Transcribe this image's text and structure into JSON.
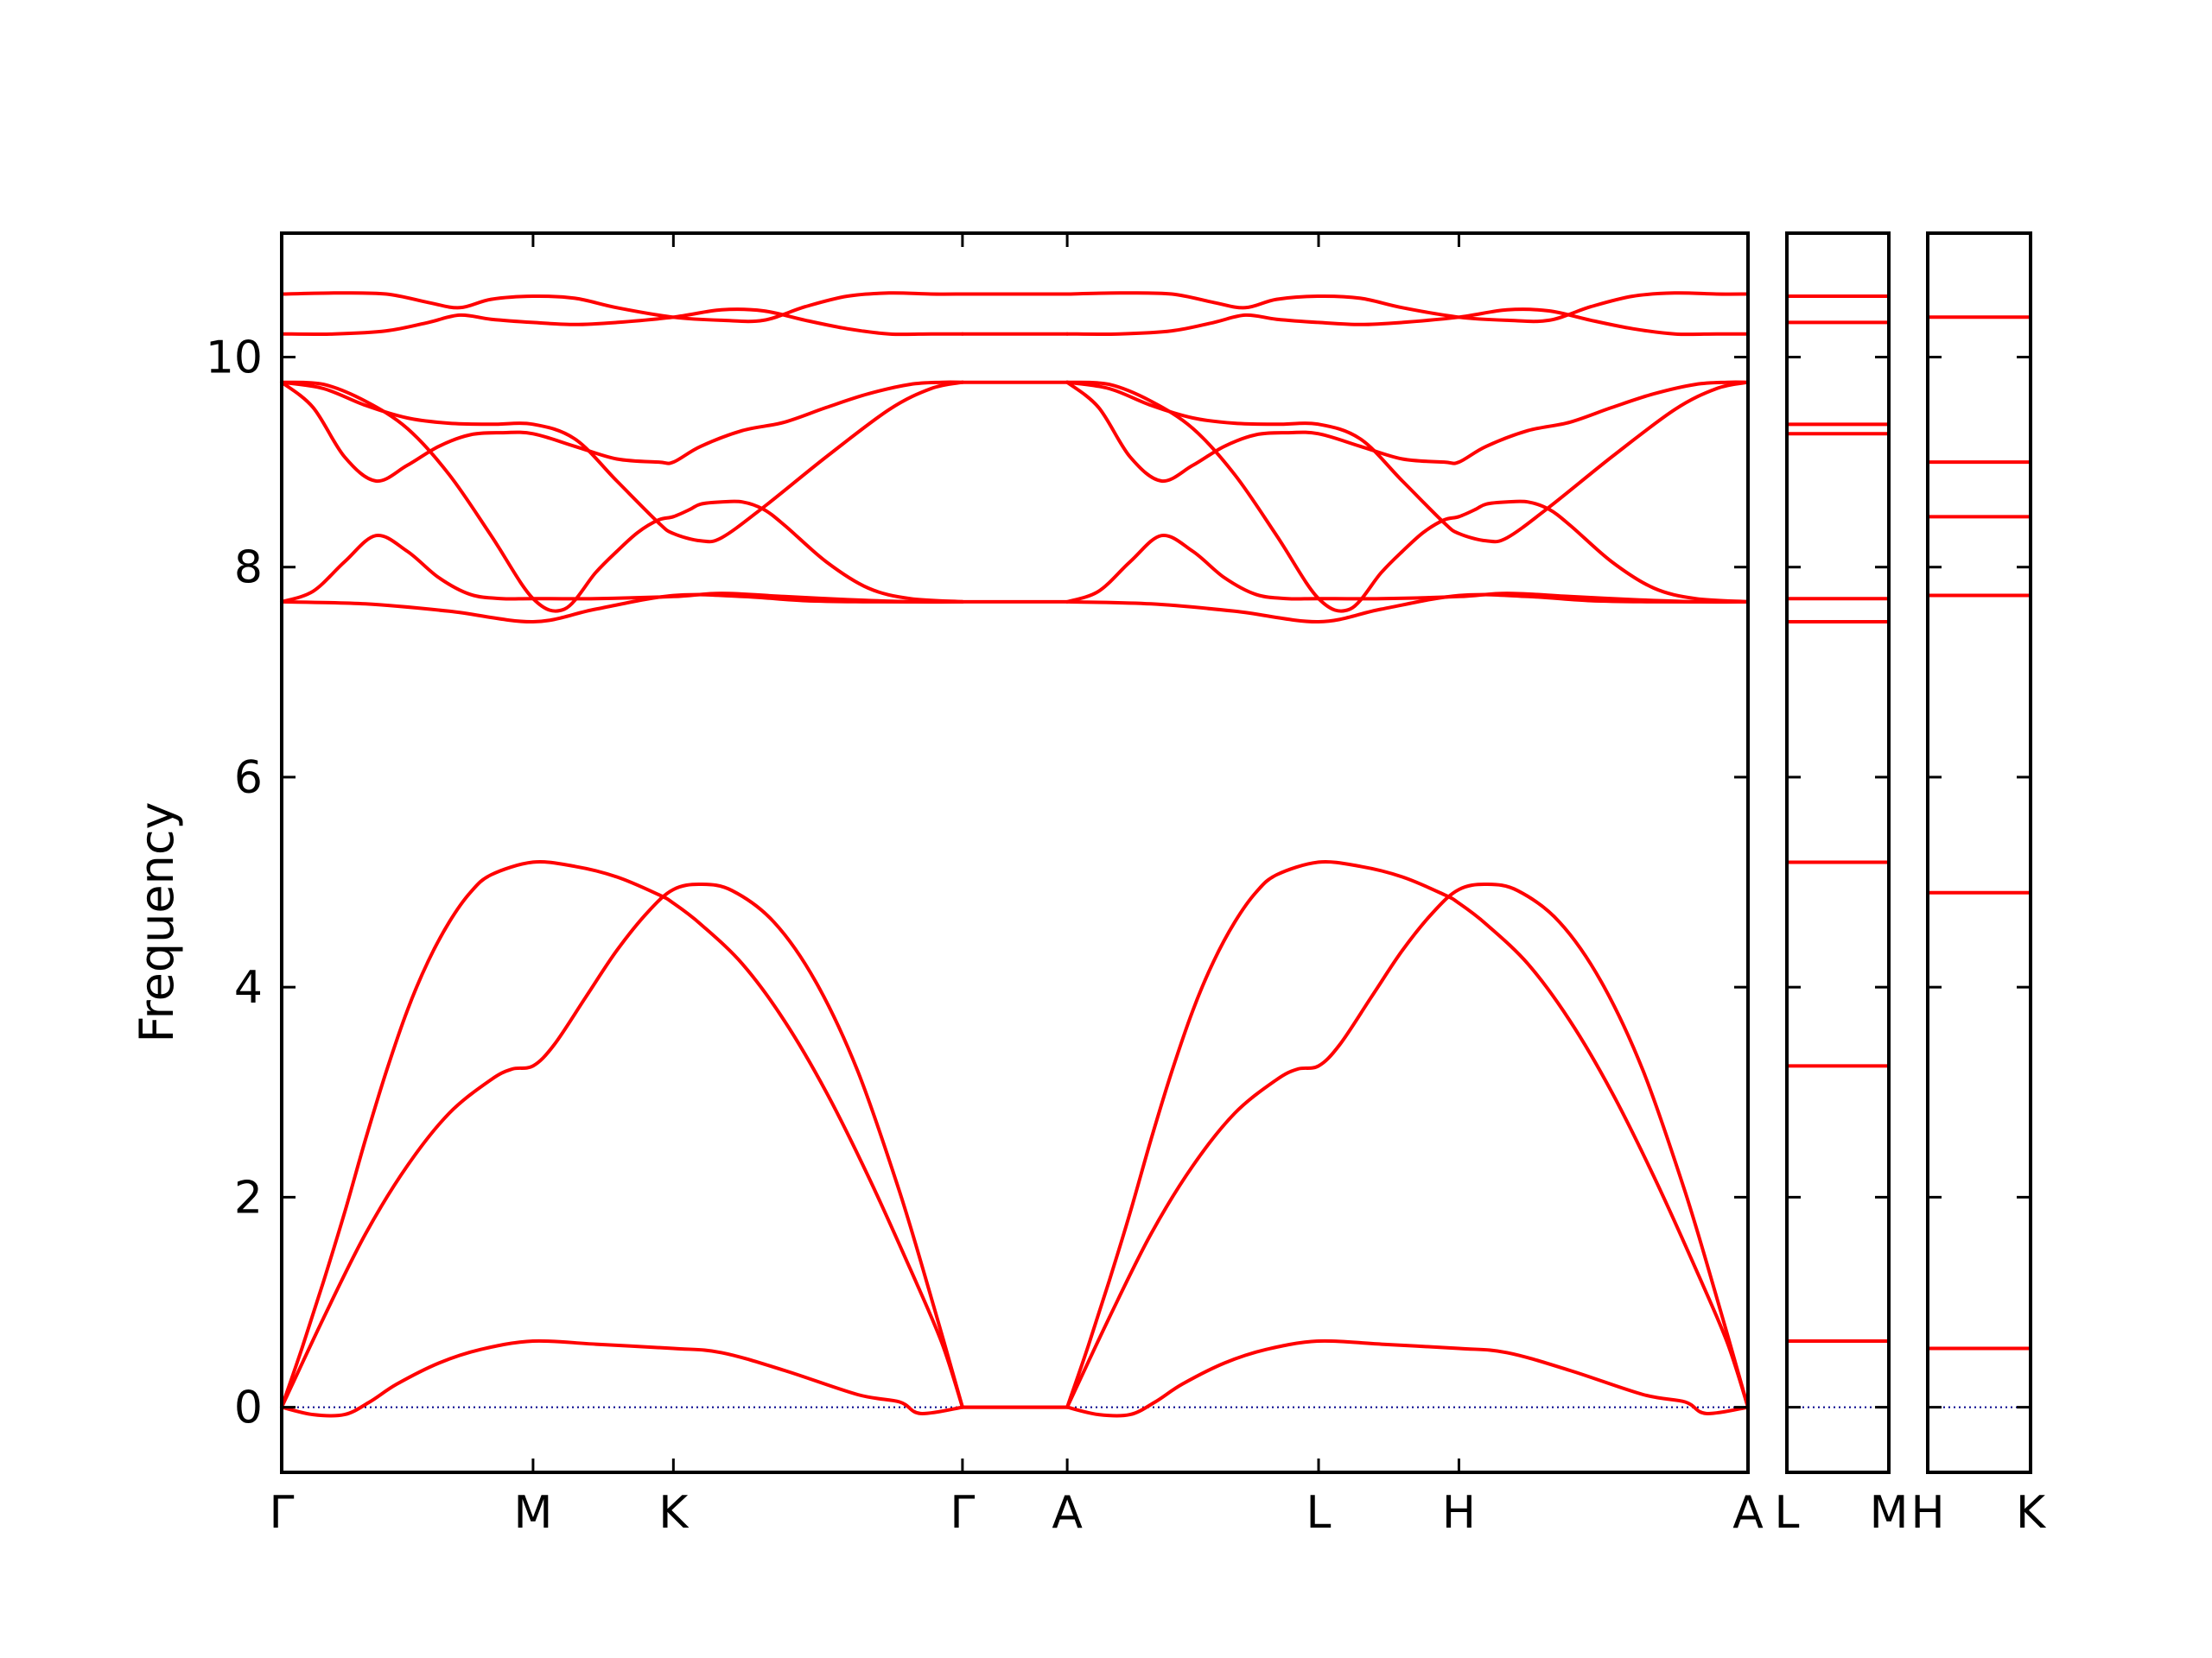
{
  "chart_data": {
    "type": "line",
    "ylabel": "Frequency",
    "ylim": [
      -0.62,
      11.18
    ],
    "yticks": [
      0,
      2,
      4,
      6,
      8,
      10
    ],
    "ytick_labels": [
      "0",
      "2",
      "4",
      "6",
      "8",
      "10"
    ],
    "line_color": "#ff0000",
    "zero_line_color": "#00008b",
    "grid": false,
    "legend": "none",
    "panels": [
      {
        "xlim": [
          0,
          7
        ],
        "segment_labels": [
          "Γ",
          "M",
          "K",
          "Γ",
          "A",
          "L",
          "H",
          "A"
        ],
        "x_positions": [
          0,
          1.2,
          1.87,
          3.25,
          3.75,
          4.95,
          5.62,
          7.0
        ],
        "tick_x": [
          1.2,
          1.87,
          3.25,
          3.75,
          4.95,
          5.62
        ],
        "bands": [
          {
            "x": [
              0,
              0.15,
              0.3,
              0.42,
              0.55,
              0.75,
              0.95,
              1.2,
              1.5,
              1.87,
              2.1,
              2.4,
              2.75,
              2.95,
              3.05,
              3.25
            ],
            "y": [
              0,
              -0.07,
              -0.07,
              0.05,
              0.22,
              0.42,
              0.55,
              0.63,
              0.6,
              0.56,
              0.52,
              0.35,
              0.12,
              0.05,
              -0.06,
              0
            ]
          },
          {
            "x": [
              0,
              0.2,
              0.4,
              0.6,
              0.8,
              1.0,
              1.1,
              1.2,
              1.3,
              1.45,
              1.6,
              1.75,
              1.87,
              2.0,
              2.15,
              2.35,
              2.55,
              2.75,
              2.95,
              3.1,
              3.25
            ],
            "y": [
              0,
              0.85,
              1.65,
              2.3,
              2.8,
              3.12,
              3.22,
              3.25,
              3.45,
              3.9,
              4.35,
              4.72,
              4.93,
              4.98,
              4.92,
              4.62,
              4.05,
              3.2,
              2.05,
              1.05,
              0
            ]
          },
          {
            "x": [
              0,
              0.1,
              0.2,
              0.3,
              0.4,
              0.5,
              0.6,
              0.7,
              0.8,
              0.9,
              1.0,
              1.2,
              1.4,
              1.6,
              1.8,
              1.87,
              2.0,
              2.2,
              2.4,
              2.6,
              2.8,
              3.0,
              3.15,
              3.25
            ],
            "y": [
              0,
              0.58,
              1.2,
              1.85,
              2.55,
              3.2,
              3.78,
              4.25,
              4.62,
              4.9,
              5.07,
              5.19,
              5.15,
              5.05,
              4.88,
              4.8,
              4.6,
              4.22,
              3.68,
              3.0,
              2.2,
              1.32,
              0.62,
              0
            ]
          },
          {
            "x": [
              0,
              0.4,
              0.8,
              1.2,
              1.5,
              1.87,
              2.2,
              2.5,
              2.8,
              3.25
            ],
            "y": [
              7.67,
              7.65,
              7.58,
              7.48,
              7.6,
              7.73,
              7.72,
              7.68,
              7.67,
              7.67
            ]
          },
          {
            "x": [
              0,
              0.15,
              0.3,
              0.45,
              0.6,
              0.75,
              0.9,
              1.05,
              1.2,
              1.5,
              1.87,
              2.1,
              2.4,
              2.7,
              3.0,
              3.25
            ],
            "y": [
              7.67,
              7.77,
              8.05,
              8.3,
              8.15,
              7.9,
              7.74,
              7.7,
              7.7,
              7.7,
              7.72,
              7.75,
              7.72,
              7.69,
              7.67,
              7.67
            ]
          },
          {
            "x": [
              0,
              0.2,
              0.4,
              0.6,
              0.8,
              1.0,
              1.2,
              1.4,
              1.6,
              1.8,
              1.87,
              2.0,
              2.1,
              2.3,
              2.6,
              2.9,
              3.1,
              3.25
            ],
            "y": [
              9.76,
              9.7,
              9.54,
              9.42,
              9.37,
              9.36,
              9.36,
              9.22,
              8.82,
              8.42,
              8.32,
              8.25,
              8.28,
              8.57,
              9.05,
              9.5,
              9.7,
              9.76
            ]
          },
          {
            "x": [
              0,
              0.15,
              0.3,
              0.45,
              0.6,
              0.75,
              0.9,
              1.05,
              1.2,
              1.4,
              1.6,
              1.8,
              1.87,
              2.0,
              2.2,
              2.4,
              2.6,
              2.8,
              3.0,
              3.15,
              3.25
            ],
            "y": [
              9.76,
              9.52,
              9.05,
              8.82,
              8.97,
              9.15,
              9.26,
              9.28,
              9.27,
              9.15,
              9.03,
              9.0,
              9.0,
              9.15,
              9.3,
              9.38,
              9.52,
              9.65,
              9.74,
              9.76,
              9.76
            ]
          },
          {
            "x": [
              0,
              0.2,
              0.4,
              0.6,
              0.8,
              1.0,
              1.2,
              1.35,
              1.5,
              1.6,
              1.7,
              1.8,
              1.87,
              1.95,
              2.0,
              2.1,
              2.2,
              2.3,
              2.4,
              2.6,
              2.8,
              3.0,
              3.25
            ],
            "y": [
              9.76,
              9.74,
              9.58,
              9.32,
              8.88,
              8.3,
              7.7,
              7.6,
              7.95,
              8.15,
              8.33,
              8.45,
              8.48,
              8.55,
              8.6,
              8.62,
              8.62,
              8.55,
              8.4,
              8.05,
              7.8,
              7.7,
              7.67
            ]
          },
          {
            "x": [
              0,
              0.25,
              0.5,
              0.7,
              0.85,
              1.0,
              1.2,
              1.4,
              1.6,
              1.87,
              2.1,
              2.3,
              2.5,
              2.7,
              2.9,
              3.1,
              3.25
            ],
            "y": [
              10.22,
              10.22,
              10.25,
              10.33,
              10.4,
              10.36,
              10.33,
              10.31,
              10.33,
              10.38,
              10.45,
              10.44,
              10.35,
              10.27,
              10.22,
              10.22,
              10.22
            ]
          },
          {
            "x": [
              0,
              0.25,
              0.5,
              0.7,
              0.85,
              1.0,
              1.2,
              1.4,
              1.6,
              1.87,
              2.1,
              2.3,
              2.5,
              2.7,
              2.9,
              3.1,
              3.25
            ],
            "y": [
              10.6,
              10.61,
              10.6,
              10.52,
              10.47,
              10.55,
              10.58,
              10.56,
              10.47,
              10.38,
              10.35,
              10.35,
              10.48,
              10.58,
              10.61,
              10.6,
              10.6
            ]
          },
          {
            "x": [
              3.25,
              3.75
            ],
            "y": [
              0,
              0
            ]
          },
          {
            "x": [
              3.25,
              3.75
            ],
            "y": [
              0,
              0
            ]
          },
          {
            "x": [
              3.25,
              3.75
            ],
            "y": [
              7.67,
              7.67
            ]
          },
          {
            "x": [
              3.25,
              3.75
            ],
            "y": [
              9.76,
              9.76
            ]
          },
          {
            "x": [
              3.25,
              3.75
            ],
            "y": [
              10.22,
              10.22
            ]
          },
          {
            "x": [
              3.25,
              3.75
            ],
            "y": [
              10.6,
              10.6
            ]
          },
          {
            "x": [
              3.75,
              3.9,
              4.05,
              4.17,
              4.3,
              4.5,
              4.7,
              4.95,
              5.25,
              5.62,
              5.85,
              6.15,
              6.5,
              6.7,
              6.8,
              7.0
            ],
            "y": [
              0,
              -0.07,
              -0.07,
              0.05,
              0.22,
              0.42,
              0.55,
              0.63,
              0.6,
              0.56,
              0.52,
              0.35,
              0.12,
              0.05,
              -0.06,
              0
            ]
          },
          {
            "x": [
              3.75,
              3.95,
              4.15,
              4.35,
              4.55,
              4.75,
              4.85,
              4.95,
              5.05,
              5.2,
              5.35,
              5.5,
              5.62,
              5.75,
              5.9,
              6.1,
              6.3,
              6.5,
              6.7,
              6.85,
              7.0
            ],
            "y": [
              0,
              0.85,
              1.65,
              2.3,
              2.8,
              3.12,
              3.22,
              3.25,
              3.45,
              3.9,
              4.35,
              4.72,
              4.93,
              4.98,
              4.92,
              4.62,
              4.05,
              3.2,
              2.05,
              1.05,
              0
            ]
          },
          {
            "x": [
              3.75,
              3.85,
              3.95,
              4.05,
              4.15,
              4.25,
              4.35,
              4.45,
              4.55,
              4.65,
              4.75,
              4.95,
              5.15,
              5.35,
              5.55,
              5.62,
              5.75,
              5.95,
              6.15,
              6.35,
              6.55,
              6.75,
              6.9,
              7.0
            ],
            "y": [
              0,
              0.58,
              1.2,
              1.85,
              2.55,
              3.2,
              3.78,
              4.25,
              4.62,
              4.9,
              5.07,
              5.19,
              5.15,
              5.05,
              4.88,
              4.8,
              4.6,
              4.22,
              3.68,
              3.0,
              2.2,
              1.32,
              0.62,
              0
            ]
          },
          {
            "x": [
              3.75,
              4.15,
              4.55,
              4.95,
              5.25,
              5.62,
              5.95,
              6.25,
              6.55,
              7.0
            ],
            "y": [
              7.67,
              7.65,
              7.58,
              7.48,
              7.6,
              7.73,
              7.72,
              7.68,
              7.67,
              7.67
            ]
          },
          {
            "x": [
              3.75,
              3.9,
              4.05,
              4.2,
              4.35,
              4.5,
              4.65,
              4.8,
              4.95,
              5.25,
              5.62,
              5.85,
              6.15,
              6.45,
              6.75,
              7.0
            ],
            "y": [
              7.67,
              7.77,
              8.05,
              8.3,
              8.15,
              7.9,
              7.74,
              7.7,
              7.7,
              7.7,
              7.72,
              7.75,
              7.72,
              7.69,
              7.67,
              7.67
            ]
          },
          {
            "x": [
              3.75,
              3.95,
              4.15,
              4.35,
              4.55,
              4.75,
              4.95,
              5.15,
              5.35,
              5.55,
              5.62,
              5.75,
              5.85,
              6.05,
              6.35,
              6.65,
              6.85,
              7.0
            ],
            "y": [
              9.76,
              9.7,
              9.54,
              9.42,
              9.37,
              9.36,
              9.36,
              9.22,
              8.82,
              8.42,
              8.32,
              8.25,
              8.28,
              8.57,
              9.05,
              9.5,
              9.7,
              9.76
            ]
          },
          {
            "x": [
              3.75,
              3.9,
              4.05,
              4.2,
              4.35,
              4.5,
              4.65,
              4.8,
              4.95,
              5.15,
              5.35,
              5.55,
              5.62,
              5.75,
              5.95,
              6.15,
              6.35,
              6.55,
              6.75,
              6.9,
              7.0
            ],
            "y": [
              9.76,
              9.52,
              9.05,
              8.82,
              8.97,
              9.15,
              9.26,
              9.28,
              9.27,
              9.15,
              9.03,
              9.0,
              9.0,
              9.15,
              9.3,
              9.38,
              9.52,
              9.65,
              9.74,
              9.76,
              9.76
            ]
          },
          {
            "x": [
              3.75,
              3.95,
              4.15,
              4.35,
              4.55,
              4.75,
              4.95,
              5.1,
              5.25,
              5.35,
              5.45,
              5.55,
              5.62,
              5.7,
              5.75,
              5.85,
              5.95,
              6.05,
              6.15,
              6.35,
              6.55,
              6.75,
              7.0
            ],
            "y": [
              9.76,
              9.74,
              9.58,
              9.32,
              8.88,
              8.3,
              7.7,
              7.6,
              7.95,
              8.15,
              8.33,
              8.45,
              8.48,
              8.55,
              8.6,
              8.62,
              8.62,
              8.55,
              8.4,
              8.05,
              7.8,
              7.7,
              7.67
            ]
          },
          {
            "x": [
              3.75,
              4.0,
              4.25,
              4.45,
              4.6,
              4.75,
              4.95,
              5.15,
              5.35,
              5.62,
              5.85,
              6.05,
              6.25,
              6.45,
              6.65,
              6.85,
              7.0
            ],
            "y": [
              10.22,
              10.22,
              10.25,
              10.33,
              10.4,
              10.36,
              10.33,
              10.31,
              10.33,
              10.38,
              10.45,
              10.44,
              10.35,
              10.27,
              10.22,
              10.22,
              10.22
            ]
          },
          {
            "x": [
              3.75,
              4.0,
              4.25,
              4.45,
              4.6,
              4.75,
              4.95,
              5.15,
              5.35,
              5.62,
              5.85,
              6.05,
              6.25,
              6.45,
              6.65,
              6.85,
              7.0
            ],
            "y": [
              10.6,
              10.61,
              10.6,
              10.52,
              10.47,
              10.55,
              10.58,
              10.56,
              10.47,
              10.38,
              10.35,
              10.35,
              10.48,
              10.58,
              10.61,
              10.6,
              10.6
            ]
          }
        ]
      },
      {
        "xlim": [
          0,
          1
        ],
        "segment_labels": [
          "L",
          "M"
        ],
        "flat_band_values": [
          0,
          0.63,
          3.25,
          5.19,
          7.48,
          7.7,
          9.27,
          9.36,
          10.33,
          10.58
        ]
      },
      {
        "xlim": [
          0,
          1
        ],
        "segment_labels": [
          "H",
          "K"
        ],
        "flat_band_values": [
          0,
          0.56,
          4.9,
          7.73,
          8.48,
          9.0,
          10.38
        ]
      }
    ]
  }
}
